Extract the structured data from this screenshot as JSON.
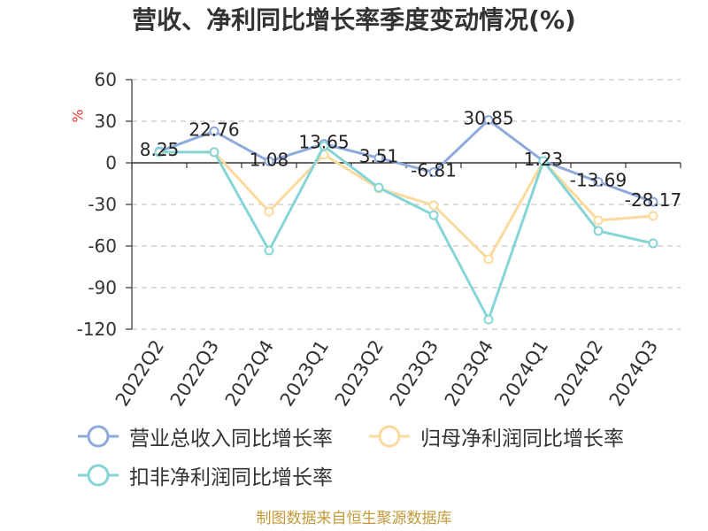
{
  "footer": "制图数据来自恒生聚源数据库",
  "colors": {
    "title": "#333333",
    "ylabel": "#e0382e",
    "footer": "#c49a3a",
    "axis": "#333333",
    "grid": "#c8c8c8",
    "tick_label": "#333333"
  },
  "chart_data": {
    "type": "line",
    "title": "营收、净利同比增长率季度变动情况(%)",
    "xlabel": "",
    "ylabel": "%",
    "ylim": [
      -120,
      60
    ],
    "yticks": [
      60,
      30,
      0,
      -30,
      -60,
      -90,
      -120
    ],
    "grid": true,
    "legend_position": "bottom",
    "categories": [
      "2022Q2",
      "2022Q3",
      "2022Q4",
      "2023Q1",
      "2023Q2",
      "2023Q3",
      "2023Q4",
      "2024Q1",
      "2024Q2",
      "2024Q3"
    ],
    "series": [
      {
        "name": "营业总收入同比增长率",
        "color": "#8ea9db",
        "show_labels": true,
        "values": [
          8.25,
          22.76,
          1.08,
          13.65,
          3.51,
          -6.81,
          30.85,
          1.23,
          -13.69,
          -28.17
        ]
      },
      {
        "name": "归母净利润同比增长率",
        "color": "#fcd99c",
        "show_labels": false,
        "values": [
          7.5,
          7.7,
          -35.1,
          5.9,
          -18.5,
          -30.6,
          -69.6,
          1.3,
          -41.5,
          -38.3
        ]
      },
      {
        "name": "扣非净利润同比增长率",
        "color": "#86d5d6",
        "show_labels": false,
        "values": [
          7.7,
          7.7,
          -63.2,
          12.1,
          -17.9,
          -37.7,
          -113.0,
          1.3,
          -49.1,
          -58.1
        ]
      }
    ]
  }
}
